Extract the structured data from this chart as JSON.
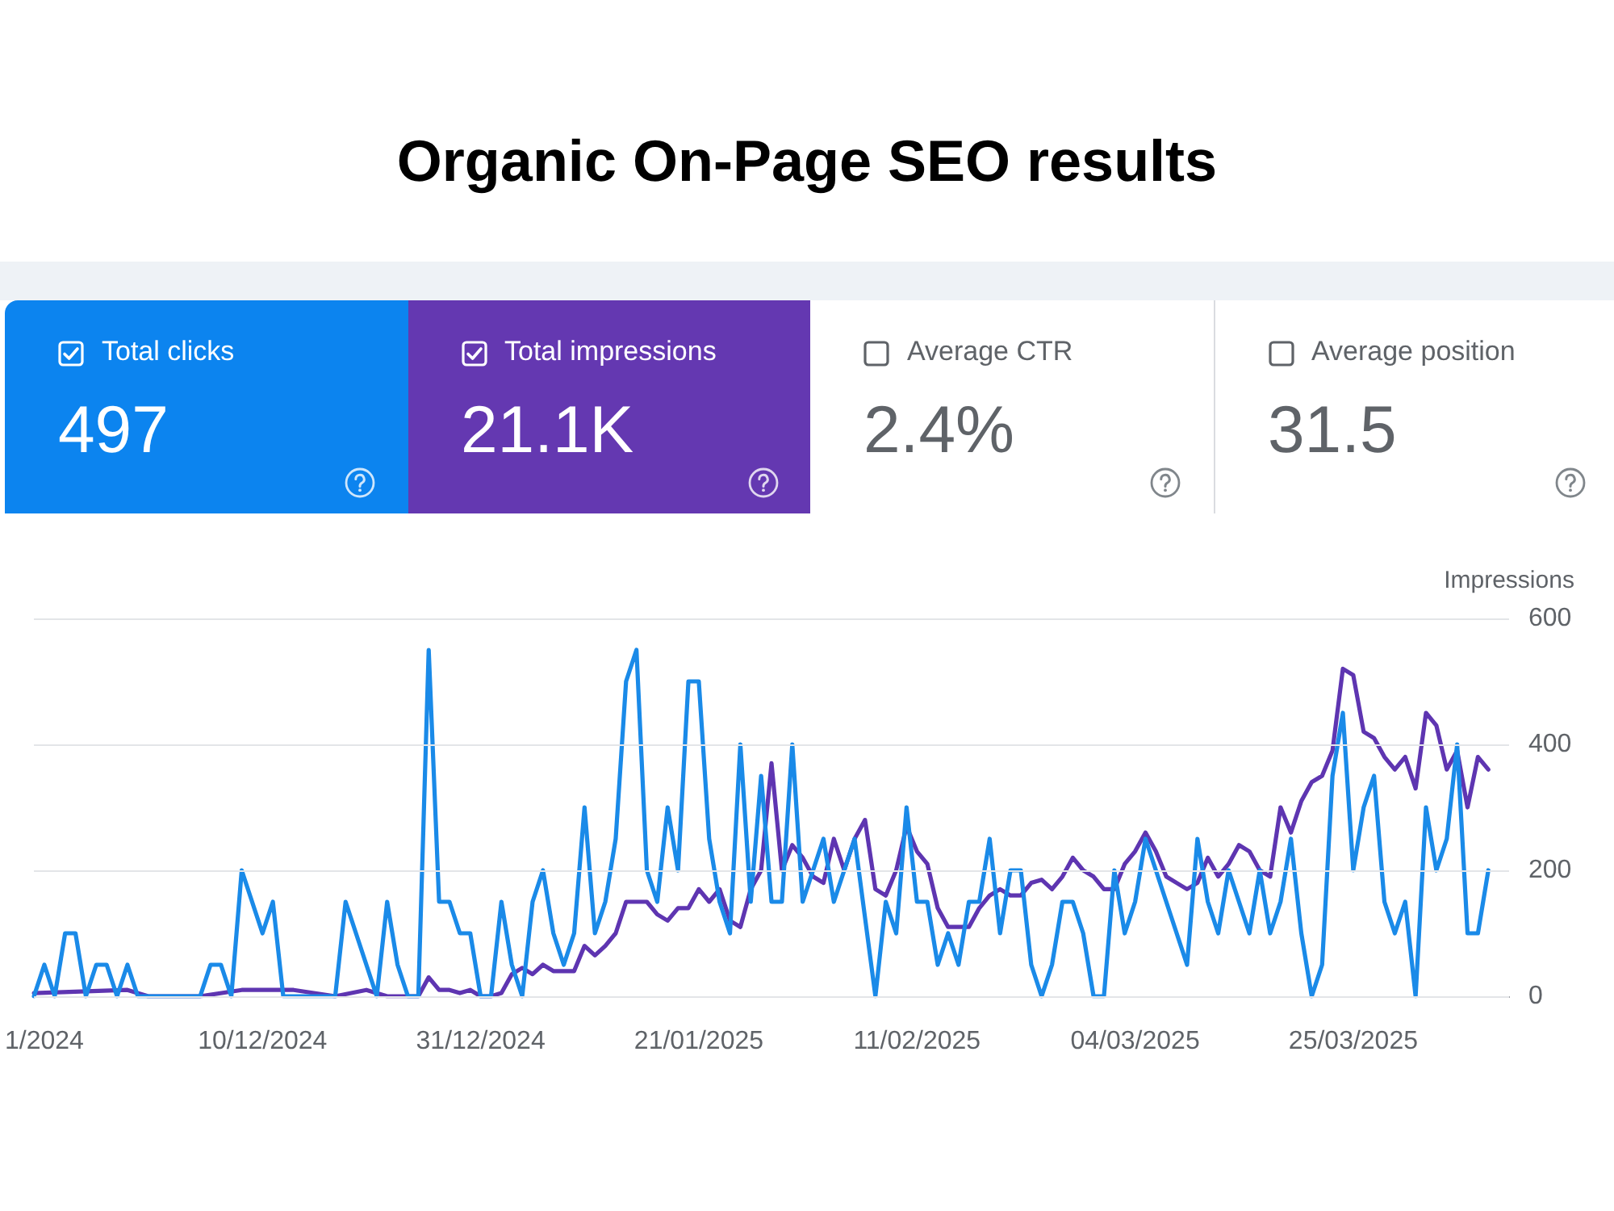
{
  "chart_data": [
    {
      "type": "other",
      "title": "Organic On-Page SEO results",
      "categories": [
        "Total clicks",
        "Total impressions",
        "Average CTR",
        "Average position"
      ],
      "value_labels": [
        "497",
        "21.1K",
        "2.4%",
        "31.5"
      ],
      "colors": [
        "#0c84ef",
        "#6438b1",
        null,
        null
      ]
    },
    {
      "type": "line",
      "ylabel": "Impressions",
      "ylim": [
        0,
        600
      ],
      "yticks": [
        0,
        200,
        400,
        600
      ],
      "xlim": [
        "2024-11-18",
        "2025-04-09"
      ],
      "xticks": [
        {
          "value": "2024-11-19",
          "label": "1/2024"
        },
        {
          "value": "2024-12-10",
          "label": "10/12/2024"
        },
        {
          "value": "2024-12-31",
          "label": "31/12/2024"
        },
        {
          "value": "2025-01-21",
          "label": "21/01/2025"
        },
        {
          "value": "2025-02-11",
          "label": "11/02/2025"
        },
        {
          "value": "2025-03-04",
          "label": "04/03/2025"
        },
        {
          "value": "2025-03-25",
          "label": "25/03/2025"
        }
      ],
      "grid": "y",
      "marker": "none",
      "line_style": "solid",
      "series": [
        {
          "color": "#1a8ae8",
          "x": [
            "2024-11-18",
            "2024-11-19",
            "2024-11-20",
            "2024-11-21",
            "2024-11-22",
            "2024-11-23",
            "2024-11-24",
            "2024-11-25",
            "2024-11-26",
            "2024-11-27",
            "2024-11-28",
            "2024-12-04",
            "2024-12-05",
            "2024-12-06",
            "2024-12-07",
            "2024-12-08",
            "2024-12-10",
            "2024-12-11",
            "2024-12-12",
            "2024-12-17",
            "2024-12-18",
            "2024-12-21",
            "2024-12-22",
            "2024-12-23",
            "2024-12-24",
            "2024-12-25",
            "2024-12-26",
            "2024-12-27",
            "2024-12-28",
            "2024-12-29",
            "2024-12-30",
            "2024-12-31",
            "2025-01-01",
            "2025-01-02",
            "2025-01-03",
            "2025-01-04",
            "2025-01-05",
            "2025-01-06",
            "2025-01-07",
            "2025-01-08",
            "2025-01-09",
            "2025-01-10",
            "2025-01-11",
            "2025-01-12",
            "2025-01-13",
            "2025-01-14",
            "2025-01-15",
            "2025-01-16",
            "2025-01-17",
            "2025-01-18",
            "2025-01-19",
            "2025-01-20",
            "2025-01-21",
            "2025-01-22",
            "2025-01-23",
            "2025-01-24",
            "2025-01-25",
            "2025-01-26",
            "2025-01-27",
            "2025-01-28",
            "2025-01-29",
            "2025-01-30",
            "2025-01-31",
            "2025-02-01",
            "2025-02-02",
            "2025-02-03",
            "2025-02-04",
            "2025-02-05",
            "2025-02-07",
            "2025-02-08",
            "2025-02-09",
            "2025-02-10",
            "2025-02-11",
            "2025-02-12",
            "2025-02-13",
            "2025-02-14",
            "2025-02-15",
            "2025-02-16",
            "2025-02-17",
            "2025-02-18",
            "2025-02-19",
            "2025-02-20",
            "2025-02-21",
            "2025-02-22",
            "2025-02-23",
            "2025-02-24",
            "2025-02-25",
            "2025-02-26",
            "2025-02-27",
            "2025-02-28",
            "2025-03-01",
            "2025-03-02",
            "2025-03-03",
            "2025-03-04",
            "2025-03-05",
            "2025-03-09",
            "2025-03-10",
            "2025-03-11",
            "2025-03-12",
            "2025-03-13",
            "2025-03-14",
            "2025-03-15",
            "2025-03-16",
            "2025-03-17",
            "2025-03-18",
            "2025-03-19",
            "2025-03-20",
            "2025-03-21",
            "2025-03-22",
            "2025-03-23",
            "2025-03-24",
            "2025-03-25",
            "2025-03-26",
            "2025-03-27",
            "2025-03-28",
            "2025-03-29",
            "2025-03-30",
            "2025-03-31",
            "2025-04-01",
            "2025-04-02",
            "2025-04-03",
            "2025-04-04",
            "2025-04-05",
            "2025-04-06",
            "2025-04-07"
          ],
          "values": [
            0,
            50,
            0,
            100,
            100,
            0,
            50,
            50,
            0,
            50,
            0,
            0,
            50,
            50,
            0,
            200,
            100,
            150,
            0,
            0,
            150,
            0,
            150,
            50,
            0,
            0,
            550,
            150,
            150,
            100,
            100,
            0,
            0,
            150,
            50,
            0,
            150,
            200,
            100,
            50,
            100,
            300,
            100,
            150,
            250,
            500,
            550,
            200,
            150,
            300,
            200,
            500,
            500,
            250,
            150,
            100,
            400,
            150,
            350,
            150,
            150,
            400,
            150,
            200,
            250,
            150,
            200,
            250,
            0,
            150,
            100,
            300,
            150,
            150,
            50,
            100,
            50,
            150,
            150,
            250,
            100,
            200,
            200,
            50,
            0,
            50,
            150,
            150,
            100,
            0,
            0,
            200,
            100,
            150,
            250,
            50,
            250,
            150,
            100,
            200,
            150,
            100,
            200,
            100,
            150,
            250,
            100,
            0,
            50,
            350,
            450,
            200,
            300,
            350,
            150,
            100,
            150,
            0,
            300,
            200,
            250,
            400,
            100,
            100,
            200
          ]
        },
        {
          "color": "#5e35b1",
          "x": [
            "2024-11-18",
            "2024-11-27",
            "2024-11-29",
            "2024-12-04",
            "2024-12-08",
            "2024-12-13",
            "2024-12-17",
            "2024-12-20",
            "2024-12-22",
            "2024-12-25",
            "2024-12-26",
            "2024-12-27",
            "2024-12-28",
            "2024-12-29",
            "2024-12-30",
            "2024-12-31",
            "2025-01-01",
            "2025-01-02",
            "2025-01-03",
            "2025-01-04",
            "2025-01-05",
            "2025-01-06",
            "2025-01-07",
            "2025-01-09",
            "2025-01-10",
            "2025-01-11",
            "2025-01-12",
            "2025-01-13",
            "2025-01-14",
            "2025-01-15",
            "2025-01-16",
            "2025-01-17",
            "2025-01-18",
            "2025-01-19",
            "2025-01-20",
            "2025-01-21",
            "2025-01-22",
            "2025-01-23",
            "2025-01-24",
            "2025-01-25",
            "2025-01-26",
            "2025-01-27",
            "2025-01-28",
            "2025-01-29",
            "2025-01-30",
            "2025-01-31",
            "2025-02-01",
            "2025-02-02",
            "2025-02-03",
            "2025-02-04",
            "2025-02-05",
            "2025-02-06",
            "2025-02-07",
            "2025-02-08",
            "2025-02-09",
            "2025-02-10",
            "2025-02-11",
            "2025-02-12",
            "2025-02-13",
            "2025-02-14",
            "2025-02-16",
            "2025-02-17",
            "2025-02-18",
            "2025-02-19",
            "2025-02-20",
            "2025-02-21",
            "2025-02-22",
            "2025-02-23",
            "2025-02-24",
            "2025-02-25",
            "2025-02-26",
            "2025-02-27",
            "2025-02-28",
            "2025-03-01",
            "2025-03-02",
            "2025-03-03",
            "2025-03-04",
            "2025-03-05",
            "2025-03-06",
            "2025-03-07",
            "2025-03-08",
            "2025-03-09",
            "2025-03-10",
            "2025-03-11",
            "2025-03-12",
            "2025-03-13",
            "2025-03-14",
            "2025-03-15",
            "2025-03-16",
            "2025-03-17",
            "2025-03-18",
            "2025-03-19",
            "2025-03-20",
            "2025-03-21",
            "2025-03-22",
            "2025-03-23",
            "2025-03-24",
            "2025-03-25",
            "2025-03-26",
            "2025-03-27",
            "2025-03-28",
            "2025-03-29",
            "2025-03-30",
            "2025-03-31",
            "2025-04-01",
            "2025-04-02",
            "2025-04-03",
            "2025-04-04",
            "2025-04-05",
            "2025-04-06",
            "2025-04-07"
          ],
          "values": [
            5,
            10,
            0,
            0,
            10,
            10,
            0,
            10,
            0,
            0,
            30,
            10,
            10,
            5,
            10,
            0,
            0,
            5,
            35,
            45,
            35,
            50,
            40,
            40,
            80,
            65,
            80,
            100,
            150,
            150,
            150,
            130,
            120,
            140,
            140,
            170,
            150,
            170,
            120,
            110,
            170,
            200,
            370,
            200,
            240,
            220,
            190,
            180,
            250,
            200,
            250,
            280,
            170,
            160,
            200,
            270,
            230,
            210,
            140,
            110,
            110,
            140,
            160,
            170,
            160,
            160,
            180,
            185,
            170,
            190,
            220,
            200,
            190,
            170,
            170,
            210,
            230,
            260,
            230,
            190,
            180,
            170,
            180,
            220,
            190,
            210,
            240,
            230,
            200,
            190,
            300,
            260,
            310,
            340,
            350,
            390,
            520,
            510,
            420,
            410,
            380,
            360,
            380,
            330,
            450,
            430,
            360,
            390,
            300,
            380,
            360
          ]
        }
      ]
    }
  ]
}
